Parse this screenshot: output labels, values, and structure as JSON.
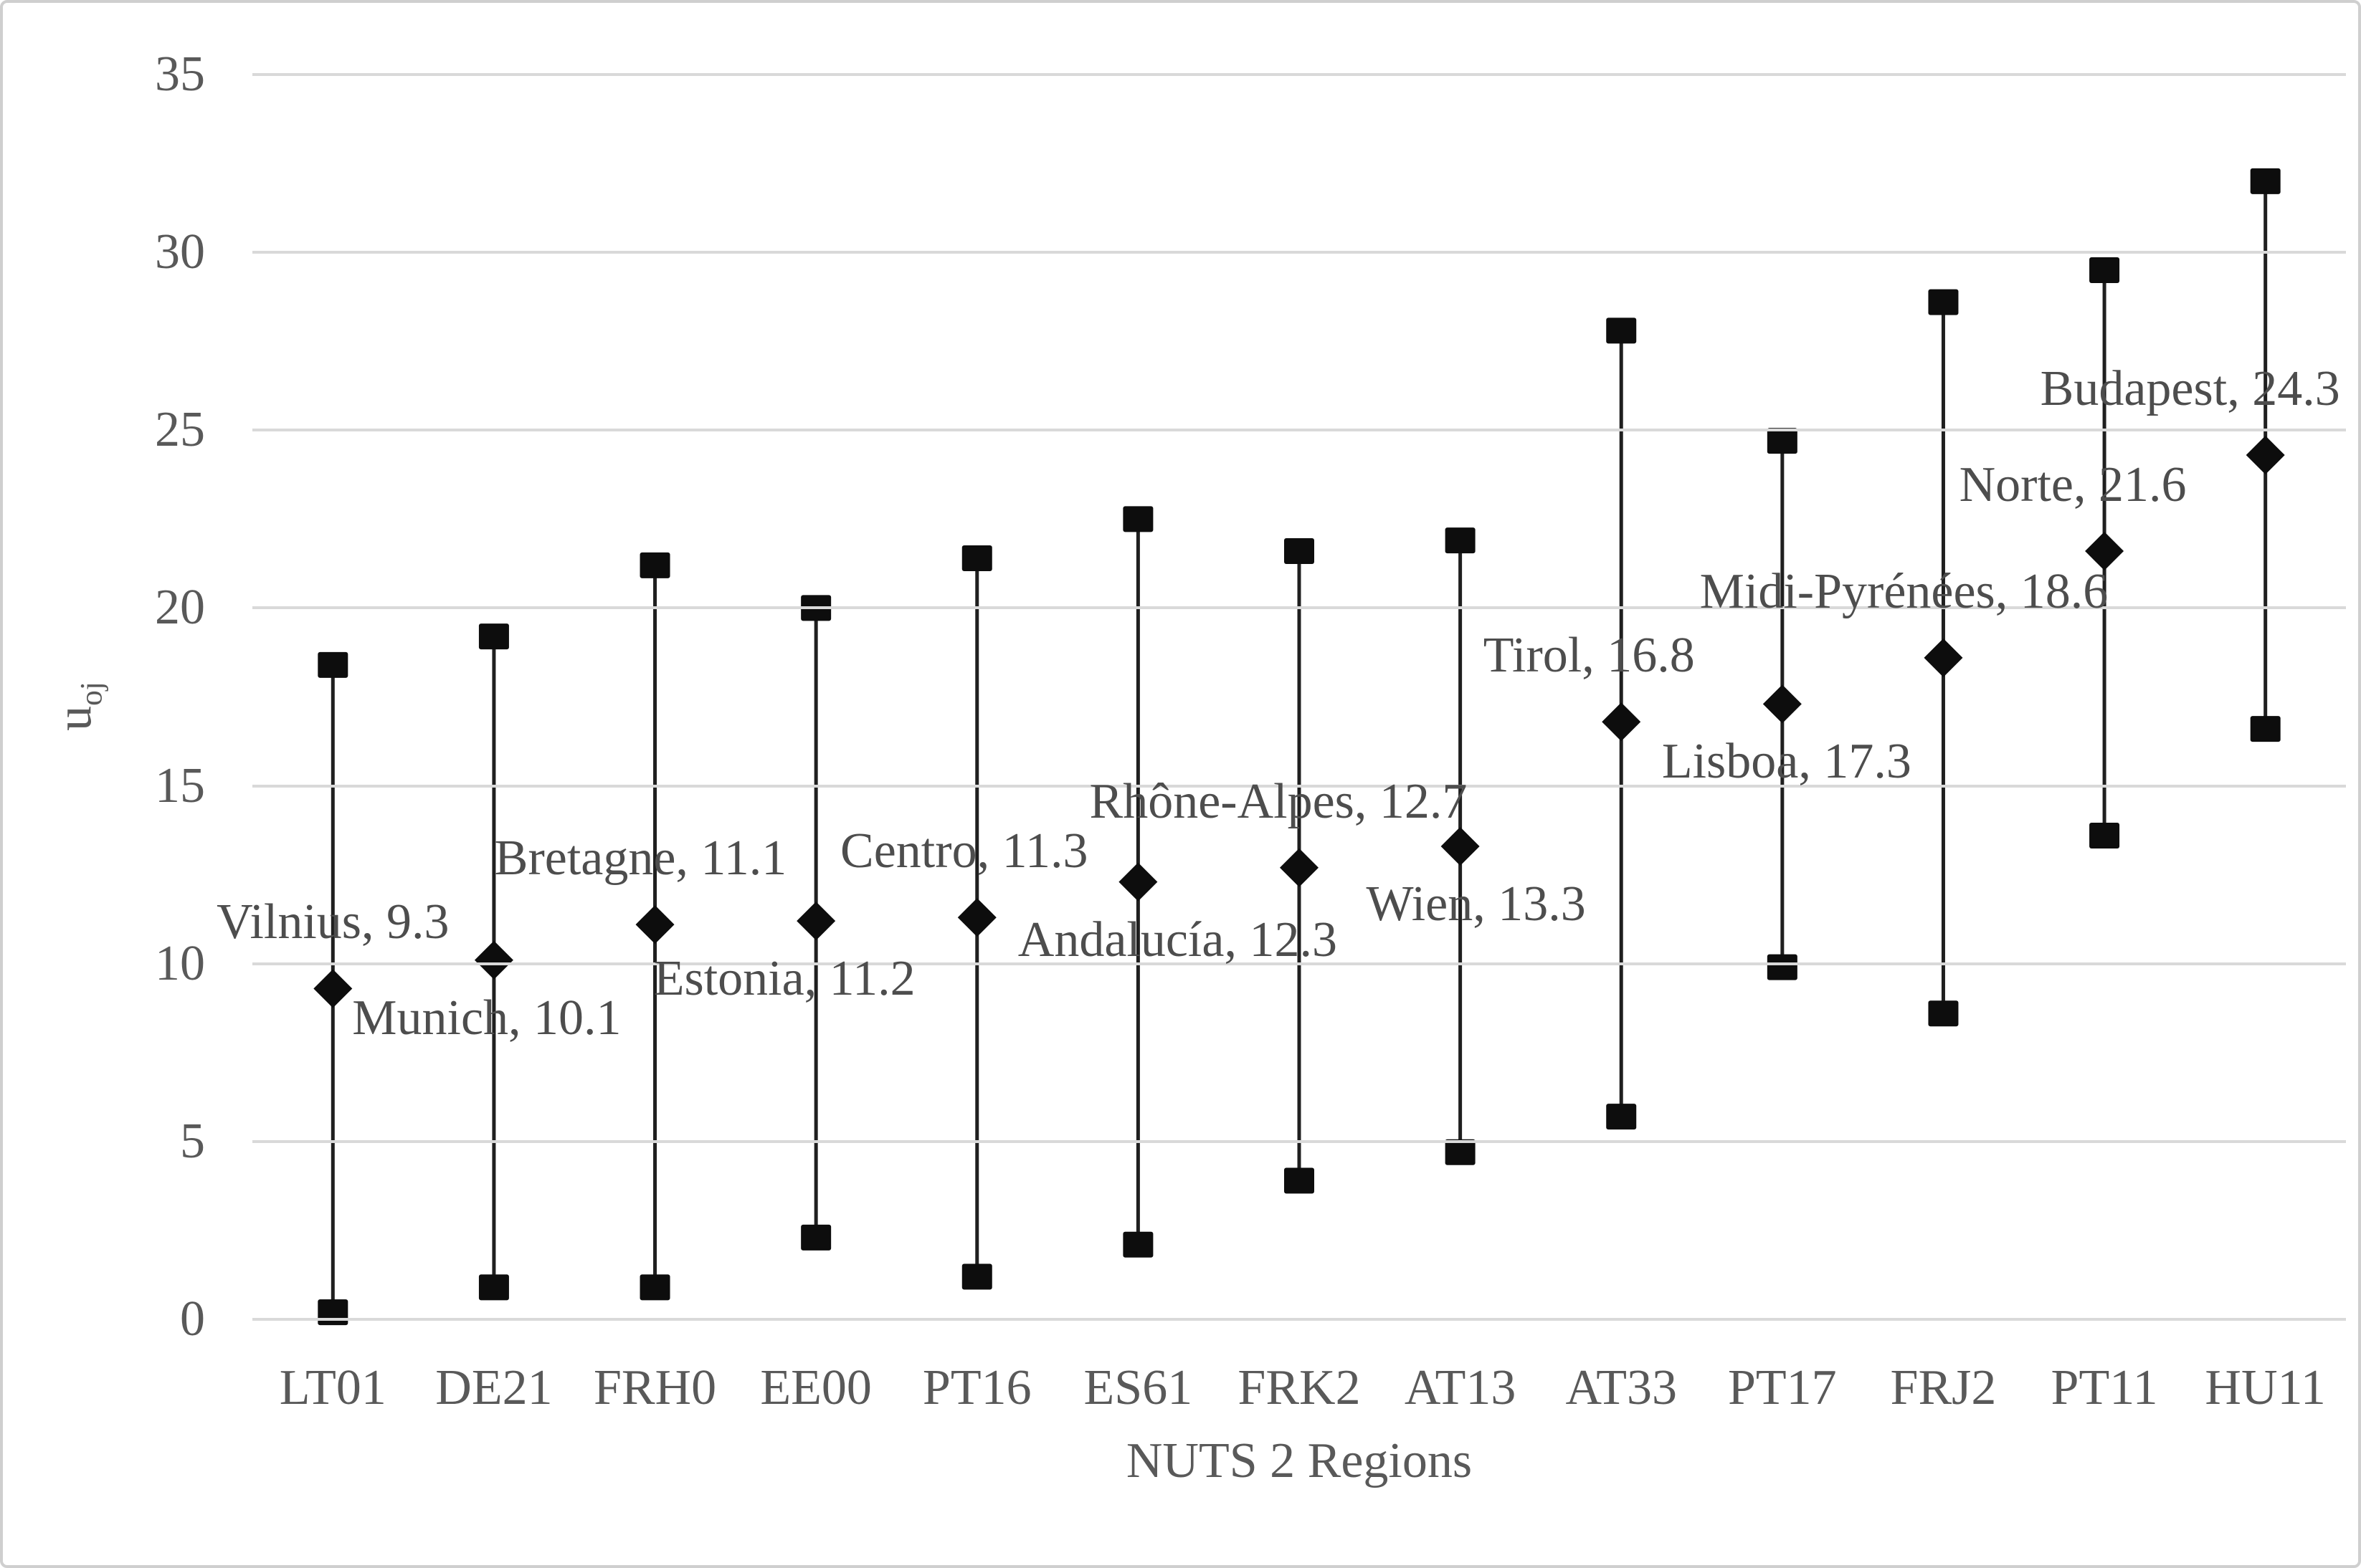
{
  "colors": {
    "background": "#ffffff",
    "frame_border": "#cfcfcf",
    "gridline": "#d9d9d9",
    "series_line": "#1f1f1f",
    "marker_fill": "#0d0d0d",
    "axis_text": "#595959",
    "data_label_text": "#4d4d4d"
  },
  "axes": {
    "y_title_main": "u",
    "y_title_sub": "oj",
    "x_title": "NUTS 2 Regions"
  },
  "chart_data": {
    "type": "scatter",
    "subtype": "high-low range lines with square ends and diamond midpoint markers",
    "title": "",
    "xlabel": "NUTS 2 Regions",
    "ylabel": "u_oj",
    "ylim": [
      0,
      35
    ],
    "yticks": [
      0,
      5,
      10,
      15,
      20,
      25,
      30,
      35
    ],
    "grid": "horizontal gridlines on",
    "legend": "none",
    "categories": [
      "LT01",
      "DE21",
      "FRH0",
      "EE00",
      "PT16",
      "ES61",
      "FRK2",
      "AT13",
      "AT33",
      "PT17",
      "FRJ2",
      "PT11",
      "HU11"
    ],
    "series": [
      {
        "name": "high",
        "marker": "square",
        "values": [
          18.4,
          19.2,
          21.2,
          20.0,
          21.4,
          22.5,
          21.6,
          21.9,
          27.8,
          24.7,
          28.6,
          29.5,
          32.0
        ]
      },
      {
        "name": "midpoint",
        "marker": "diamond",
        "values": [
          9.3,
          10.1,
          11.1,
          11.2,
          11.3,
          12.3,
          12.7,
          13.3,
          16.8,
          17.3,
          18.6,
          21.6,
          24.3
        ]
      },
      {
        "name": "low",
        "marker": "square",
        "values": [
          0.2,
          0.9,
          0.9,
          2.3,
          1.2,
          2.1,
          3.9,
          4.7,
          5.7,
          9.9,
          8.6,
          13.6,
          16.6
        ]
      }
    ],
    "points": [
      {
        "region": "LT01",
        "city": "Vilnius",
        "label": "Vilnius, 9.3",
        "high": 18.4,
        "mid": 9.3,
        "low": 0.2,
        "label_side": "above",
        "label_dx": 0
      },
      {
        "region": "DE21",
        "city": "Munich",
        "label": "Munich, 10.1",
        "high": 19.2,
        "mid": 10.1,
        "low": 0.9,
        "label_side": "below",
        "label_dx": -10
      },
      {
        "region": "FRH0",
        "city": "Bretagne",
        "label": "Bretagne, 11.1",
        "high": 21.2,
        "mid": 11.1,
        "low": 0.9,
        "label_side": "above",
        "label_dx": -20
      },
      {
        "region": "EE00",
        "city": "Estonia",
        "label": "Estonia, 11.2",
        "high": 20.0,
        "mid": 11.2,
        "low": 2.3,
        "label_side": "below",
        "label_dx": -44
      },
      {
        "region": "PT16",
        "city": "Centro",
        "label": "Centro, 11.3",
        "high": 21.4,
        "mid": 11.3,
        "low": 1.2,
        "label_side": "above",
        "label_dx": -18
      },
      {
        "region": "ES61",
        "city": "Andalucía",
        "label": "Andalucía, 12.3",
        "high": 22.5,
        "mid": 12.3,
        "low": 2.1,
        "label_side": "below",
        "label_dx": 55
      },
      {
        "region": "FRK2",
        "city": "Rhône-Alpes",
        "label": "Rhône-Alpes, 12.7",
        "high": 21.6,
        "mid": 12.7,
        "low": 3.9,
        "label_side": "above",
        "label_dx": -29
      },
      {
        "region": "AT13",
        "city": "Wien",
        "label": "Wien, 13.3",
        "high": 21.9,
        "mid": 13.3,
        "low": 4.7,
        "label_side": "below",
        "label_dx": 22
      },
      {
        "region": "AT33",
        "city": "Tirol",
        "label": "Tirol, 16.8",
        "high": 27.8,
        "mid": 16.8,
        "low": 5.7,
        "label_side": "above",
        "label_dx": -45
      },
      {
        "region": "PT17",
        "city": "Lisboa",
        "label": "Lisboa, 17.3",
        "high": 24.7,
        "mid": 17.3,
        "low": 9.9,
        "label_side": "below",
        "label_dx": 6
      },
      {
        "region": "FRJ2",
        "city": "Midi-Pyrénées",
        "label": "Midi-Pyrénées, 18.6",
        "high": 28.6,
        "mid": 18.6,
        "low": 8.6,
        "label_side": "above",
        "label_dx": -55
      },
      {
        "region": "PT11",
        "city": "Norte",
        "label": "Norte, 21.6",
        "high": 29.5,
        "mid": 21.6,
        "low": 13.6,
        "label_side": "above",
        "label_dx": -44
      },
      {
        "region": "HU11",
        "city": "Budapest",
        "label": "Budapest, 24.3",
        "high": 32.0,
        "mid": 24.3,
        "low": 16.6,
        "label_side": "above",
        "label_dx": -105
      }
    ]
  }
}
